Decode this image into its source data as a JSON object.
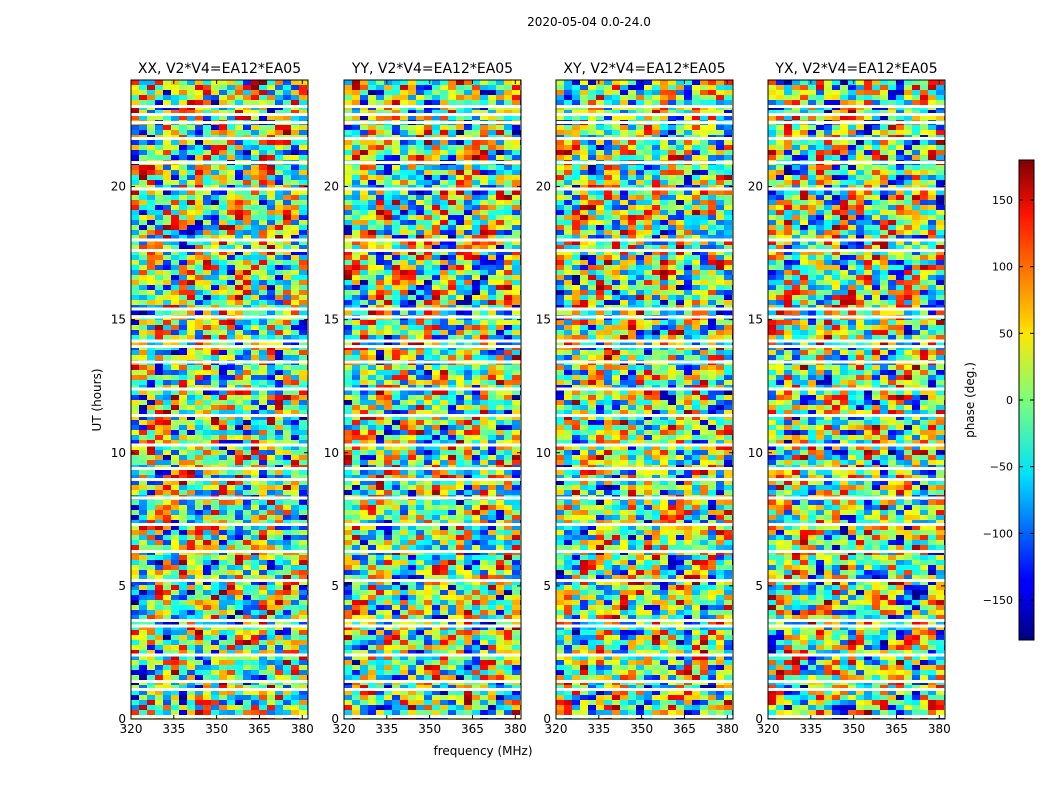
{
  "chart_data": {
    "type": "heatmap",
    "suptitle": "2020-05-04 0.0-24.0",
    "xlabel": "frequency (MHz)",
    "ylabel": "UT (hours)",
    "xlim": [
      320,
      382
    ],
    "ylim": [
      0,
      24
    ],
    "xticks": [
      320,
      335,
      350,
      365,
      380
    ],
    "xtick_labels": [
      "320",
      "335",
      "350",
      "365",
      "380"
    ],
    "yticks": [
      0,
      5,
      10,
      15,
      20
    ],
    "ytick_labels": [
      "0",
      "5",
      "10",
      "15",
      "20"
    ],
    "colorbar": {
      "label": "phase (deg.)",
      "colormap": "jet",
      "range": [
        -180,
        180
      ],
      "ticks": [
        -150,
        -100,
        -50,
        0,
        50,
        100,
        150
      ],
      "tick_labels": [
        "−150",
        "−100",
        "−50",
        "0",
        "50",
        "100",
        "150"
      ]
    },
    "panels": [
      {
        "title": "XX, V2*V4=EA12*EA05",
        "polarization": "XX"
      },
      {
        "title": "YY, V2*V4=EA12*EA05",
        "polarization": "YY"
      },
      {
        "title": "XY, V2*V4=EA12*EA05",
        "polarization": "XY"
      },
      {
        "title": "YX, V2*V4=EA12*EA05",
        "polarization": "YX"
      }
    ],
    "data_gaps_ut_hours": [
      0.1,
      1.1,
      1.4,
      2.4,
      3.5,
      3.7,
      5.2,
      6.3,
      7.3,
      8.3,
      9.0,
      9.4,
      10.3,
      11.4,
      12.4,
      13.4,
      14.0,
      14.2,
      15.1,
      15.4,
      17.6,
      18.0,
      19.9,
      20.9,
      21.8,
      22.4,
      22.7,
      23.0
    ],
    "colors": {
      "frame": "#000000",
      "background": "#ffffff"
    }
  }
}
